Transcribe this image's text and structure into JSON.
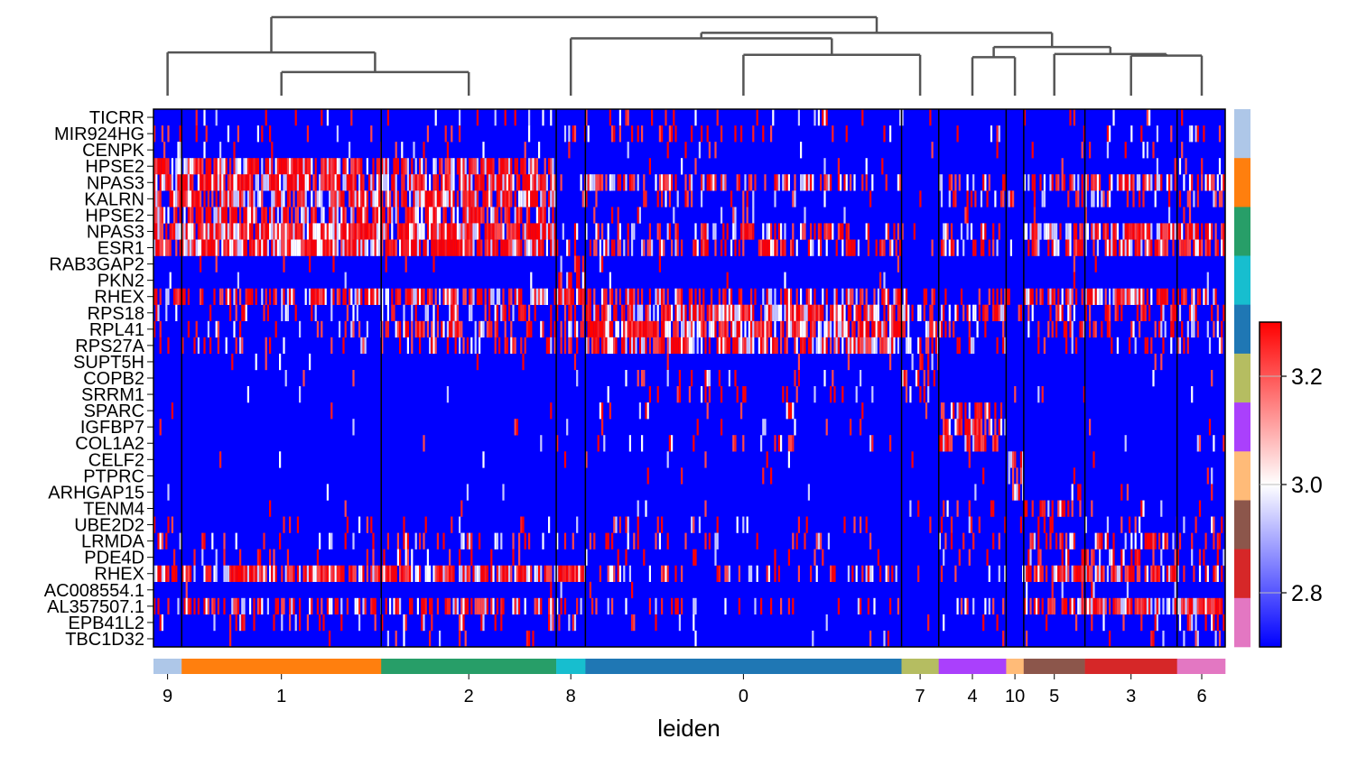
{
  "chart_data": {
    "type": "heatmap",
    "genes": [
      "TICRR",
      "MIR924HG",
      "CENPK",
      "HPSE2",
      "NPAS3",
      "KALRN",
      "HPSE2",
      "NPAS3",
      "ESR1",
      "RAB3GAP2",
      "PKN2",
      "RHEX",
      "RPS18",
      "RPL41",
      "RPS27A",
      "SUPT5H",
      "COPB2",
      "SRRM1",
      "SPARC",
      "IGFBP7",
      "COL1A2",
      "CELF2",
      "PTPRC",
      "ARHGAP15",
      "TENM4",
      "UBE2D2",
      "LRMDA",
      "PDE4D",
      "RHEX",
      "AC008554.1",
      "AL357507.1",
      "EPB41L2",
      "TBC1D32"
    ],
    "groups": [
      {
        "label": "9",
        "color": "#aec7e8",
        "frac": 0.0263
      },
      {
        "label": "1",
        "color": "#ff7f0e",
        "frac": 0.1862
      },
      {
        "label": "2",
        "color": "#279e68",
        "frac": 0.1633
      },
      {
        "label": "8",
        "color": "#17becf",
        "frac": 0.0272
      },
      {
        "label": "0",
        "color": "#1f77b4",
        "frac": 0.295
      },
      {
        "label": "7",
        "color": "#b5bd61",
        "frac": 0.0347
      },
      {
        "label": "4",
        "color": "#aa40fc",
        "frac": 0.0629
      },
      {
        "label": "10",
        "color": "#ffbb78",
        "frac": 0.0164
      },
      {
        "label": "5",
        "color": "#8c564b",
        "frac": 0.0571
      },
      {
        "label": "3",
        "color": "#d62728",
        "frac": 0.086
      },
      {
        "label": "6",
        "color": "#e377c2",
        "frac": 0.046
      }
    ],
    "marker_gene_groups": [
      {
        "color": "#aec7e8",
        "genes": 3
      },
      {
        "color": "#ff7f0e",
        "genes": 3
      },
      {
        "color": "#279e68",
        "genes": 3
      },
      {
        "color": "#17becf",
        "genes": 3
      },
      {
        "color": "#1f77b4",
        "genes": 3
      },
      {
        "color": "#b5bd61",
        "genes": 3
      },
      {
        "color": "#aa40fc",
        "genes": 3
      },
      {
        "color": "#ffbb78",
        "genes": 3
      },
      {
        "color": "#8c564b",
        "genes": 3
      },
      {
        "color": "#d62728",
        "genes": 3
      },
      {
        "color": "#e377c2",
        "genes": 3
      }
    ],
    "expression_level": [
      [
        0.1,
        0.1,
        0.1,
        0.1,
        0.15,
        0.1,
        0.05,
        0.1,
        0.1,
        0.1,
        0.1
      ],
      [
        0.3,
        0.05,
        0.05,
        0.25,
        0.2,
        0.05,
        0.05,
        0.05,
        0.1,
        0.1,
        0.25
      ],
      [
        0.25,
        0.05,
        0.05,
        0.15,
        0.05,
        0.05,
        0.05,
        0.05,
        0.05,
        0.05,
        0.05
      ],
      [
        0.75,
        0.8,
        0.75,
        0.1,
        0.05,
        0.02,
        0.02,
        0.02,
        0.05,
        0.05,
        0.05
      ],
      [
        0.85,
        0.9,
        0.85,
        0.2,
        0.4,
        0.05,
        0.3,
        0.05,
        0.7,
        0.75,
        0.75
      ],
      [
        0.7,
        0.75,
        0.7,
        0.1,
        0.15,
        0.05,
        0.2,
        0.1,
        0.25,
        0.25,
        0.3
      ],
      [
        0.75,
        0.75,
        0.75,
        0.1,
        0.05,
        0.02,
        0.02,
        0.02,
        0.05,
        0.05,
        0.05
      ],
      [
        0.85,
        0.95,
        0.9,
        0.2,
        0.4,
        0.05,
        0.3,
        0.05,
        0.75,
        0.8,
        0.75
      ],
      [
        0.85,
        0.95,
        0.85,
        0.3,
        0.45,
        0.1,
        0.3,
        0.1,
        0.6,
        0.65,
        0.6
      ],
      [
        0.02,
        0.02,
        0.02,
        0.3,
        0.02,
        0.02,
        0.02,
        0.02,
        0.02,
        0.02,
        0.02
      ],
      [
        0.05,
        0.02,
        0.02,
        0.45,
        0.02,
        0.02,
        0.02,
        0.02,
        0.02,
        0.02,
        0.02
      ],
      [
        0.75,
        0.6,
        0.65,
        0.85,
        0.5,
        0.2,
        0.3,
        0.15,
        0.75,
        0.85,
        0.55
      ],
      [
        0.3,
        0.2,
        0.35,
        0.4,
        0.85,
        0.45,
        0.4,
        0.15,
        0.4,
        0.4,
        0.35
      ],
      [
        0.4,
        0.2,
        0.35,
        0.45,
        0.85,
        0.45,
        0.35,
        0.2,
        0.4,
        0.4,
        0.35
      ],
      [
        0.25,
        0.15,
        0.35,
        0.45,
        0.85,
        0.4,
        0.25,
        0.15,
        0.25,
        0.25,
        0.25
      ],
      [
        0.02,
        0.02,
        0.02,
        0.05,
        0.05,
        0.4,
        0.02,
        0.02,
        0.02,
        0.02,
        0.02
      ],
      [
        0.02,
        0.02,
        0.02,
        0.05,
        0.1,
        0.25,
        0.02,
        0.02,
        0.02,
        0.02,
        0.02
      ],
      [
        0.02,
        0.02,
        0.02,
        0.05,
        0.15,
        0.3,
        0.02,
        0.02,
        0.02,
        0.02,
        0.02
      ],
      [
        0.02,
        0.02,
        0.02,
        0.02,
        0.05,
        0.02,
        0.45,
        0.02,
        0.02,
        0.02,
        0.02
      ],
      [
        0.02,
        0.02,
        0.02,
        0.02,
        0.05,
        0.02,
        0.45,
        0.02,
        0.02,
        0.02,
        0.02
      ],
      [
        0.02,
        0.02,
        0.02,
        0.02,
        0.1,
        0.02,
        0.55,
        0.02,
        0.02,
        0.02,
        0.05
      ],
      [
        0.02,
        0.02,
        0.02,
        0.02,
        0.02,
        0.02,
        0.02,
        0.5,
        0.02,
        0.02,
        0.02
      ],
      [
        0.02,
        0.02,
        0.02,
        0.02,
        0.02,
        0.02,
        0.02,
        0.6,
        0.02,
        0.02,
        0.02
      ],
      [
        0.02,
        0.02,
        0.02,
        0.02,
        0.02,
        0.02,
        0.02,
        0.55,
        0.02,
        0.02,
        0.02
      ],
      [
        0.02,
        0.02,
        0.02,
        0.02,
        0.02,
        0.02,
        0.1,
        0.02,
        0.35,
        0.05,
        0.05
      ],
      [
        0.1,
        0.05,
        0.1,
        0.1,
        0.1,
        0.05,
        0.15,
        0.05,
        0.3,
        0.15,
        0.15
      ],
      [
        0.2,
        0.15,
        0.2,
        0.15,
        0.15,
        0.05,
        0.2,
        0.05,
        0.35,
        0.45,
        0.3
      ],
      [
        0.15,
        0.1,
        0.15,
        0.1,
        0.1,
        0.05,
        0.15,
        0.05,
        0.2,
        0.45,
        0.35
      ],
      [
        0.85,
        0.75,
        0.8,
        0.85,
        0.3,
        0.05,
        0.2,
        0.05,
        0.8,
        0.85,
        0.4
      ],
      [
        0.02,
        0.02,
        0.02,
        0.02,
        0.02,
        0.02,
        0.02,
        0.02,
        0.05,
        0.05,
        0.05
      ],
      [
        0.45,
        0.55,
        0.55,
        0.1,
        0.15,
        0.05,
        0.2,
        0.05,
        0.7,
        0.8,
        0.85
      ],
      [
        0.15,
        0.1,
        0.15,
        0.05,
        0.05,
        0.02,
        0.05,
        0.02,
        0.15,
        0.2,
        0.4
      ],
      [
        0.05,
        0.02,
        0.05,
        0.02,
        0.02,
        0.02,
        0.05,
        0.02,
        0.1,
        0.1,
        0.35
      ]
    ],
    "xlabel": "leiden",
    "colorbar": {
      "min": 2.7,
      "max": 3.3,
      "ticks": [
        2.8,
        3.0,
        3.2
      ],
      "tick_labels": [
        "2.8",
        "3.0",
        "3.2"
      ],
      "colors": [
        "#0000ff",
        "#ffffff",
        "#ff0000"
      ]
    },
    "dendrogram": [
      {
        "a": 0,
        "b": [
          2,
          1
        ],
        "height": 1.0
      },
      {
        "a": [
          2,
          1
        ],
        "b": null,
        "height": 0.55
      },
      {
        "a": 1,
        "b": 2,
        "height": 0.3
      },
      {
        "a": 3,
        "b": "c04",
        "height": 0.73
      },
      {
        "a": 4,
        "b": 5,
        "height": 0.52
      },
      {
        "a": [
          6,
          7
        ],
        "b": [
          8,
          9,
          10
        ],
        "height": 0.62
      },
      {
        "a": 6,
        "b": 7,
        "height": 0.49
      },
      {
        "a": 8,
        "b": [
          9,
          10
        ],
        "height": 0.53
      },
      {
        "a": 9,
        "b": 10,
        "height": 0.51
      }
    ]
  }
}
